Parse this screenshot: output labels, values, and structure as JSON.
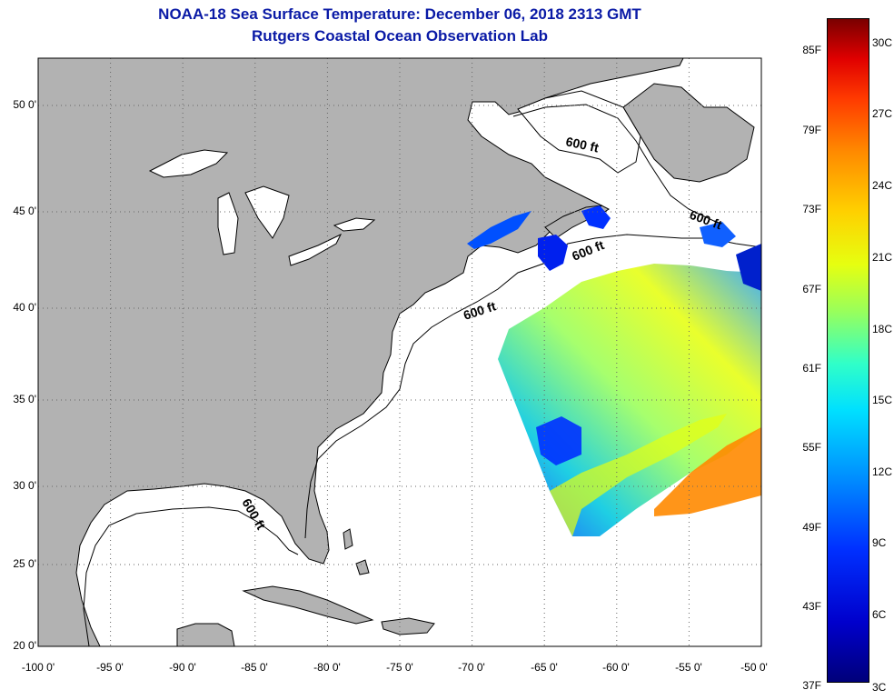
{
  "header": {
    "title": "NOAA-18 Sea Surface Temperature:  December 06, 2018 2313 GMT",
    "subtitle": "Rutgers Coastal Ocean Observation Lab"
  },
  "map": {
    "lon_range": [
      -100,
      -50
    ],
    "lat_range": [
      20,
      52
    ],
    "lon_ticks": [
      "-100 0'",
      "-95 0'",
      "-90 0'",
      "-85 0'",
      "-80 0'",
      "-75 0'",
      "-70 0'",
      "-65 0'",
      "-60 0'",
      "-55 0'",
      "-50 0'"
    ],
    "lat_ticks": [
      "20 0'",
      "25 0'",
      "30 0'",
      "35 0'",
      "40 0'",
      "45 0'",
      "50 0'"
    ],
    "grid": "dotted",
    "land_color": "#b2b2b2",
    "water_color": "#ffffff",
    "depth_contour_label": "600 ft"
  },
  "colorbar": {
    "fahrenheit": [
      "85F",
      "79F",
      "73F",
      "67F",
      "61F",
      "55F",
      "49F",
      "43F",
      "37F"
    ],
    "celsius": [
      "30C",
      "27C",
      "24C",
      "21C",
      "18C",
      "15C",
      "12C",
      "9C",
      "6C",
      "3C"
    ],
    "min_color": "#00007a",
    "max_color": "#7a0000"
  }
}
